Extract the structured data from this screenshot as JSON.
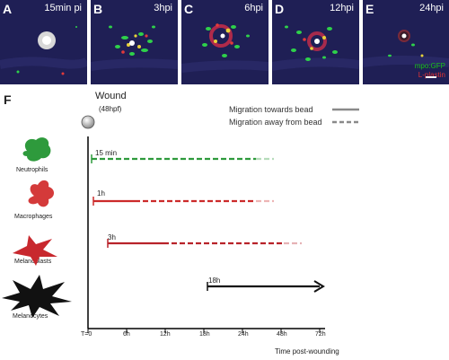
{
  "panels": [
    {
      "label": "A",
      "time": "15min pi"
    },
    {
      "label": "B",
      "time": "3hpi"
    },
    {
      "label": "C",
      "time": "6hpi"
    },
    {
      "label": "D",
      "time": "12hpi"
    },
    {
      "label": "E",
      "time": "24hpi"
    }
  ],
  "legend_top": {
    "gfp": "mpo:GFP",
    "lplastin": "L-plastin"
  },
  "figure_label": "F",
  "wound": {
    "title": "Wound",
    "subtitle": "(48hpf)"
  },
  "migration_legend": {
    "towards": "Migration towards bead",
    "away": "Migration away from bead"
  },
  "cells": [
    {
      "name": "Neutrophils",
      "onset": "15 min",
      "color": "#2e9a3c"
    },
    {
      "name": "Macrophages",
      "onset": "1h",
      "color": "#cc2a2a"
    },
    {
      "name": "Melanoblasts",
      "onset": "3h",
      "color": "#b8232a"
    },
    {
      "name": "Melanocytes",
      "onset": "18h",
      "color": "#111111"
    }
  ],
  "axis": {
    "ticks": [
      "T=0",
      "6h",
      "12h",
      "18h",
      "24h",
      "48h",
      "72h"
    ],
    "title": "Time post-wounding"
  }
}
